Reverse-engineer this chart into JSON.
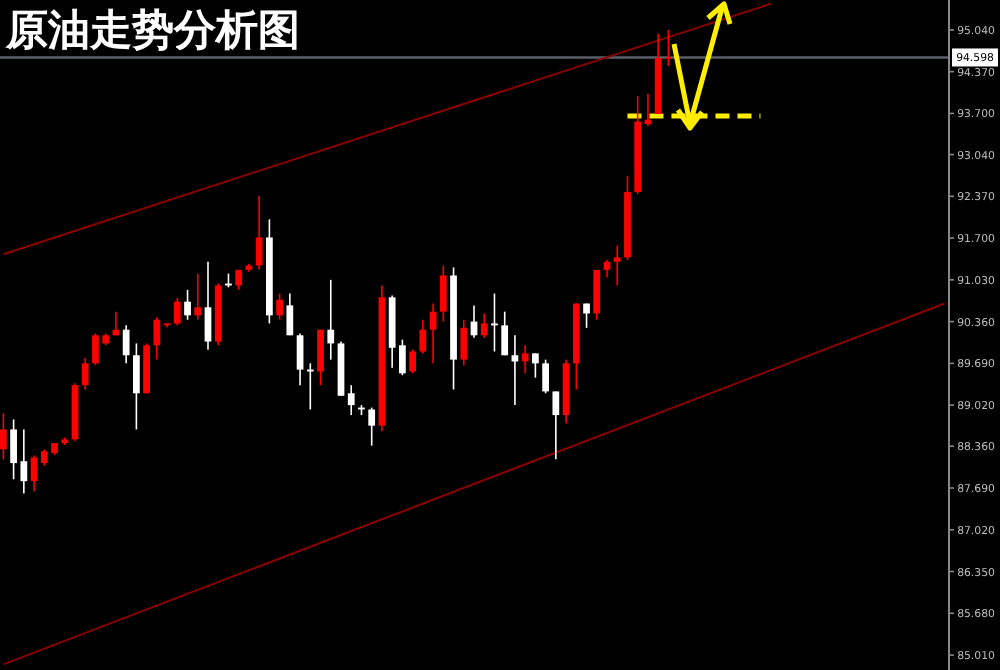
{
  "chart_data": {
    "type": "candlestick",
    "title": "原油走势分析图",
    "categories": [
      null,
      null,
      null,
      null,
      null,
      null,
      null,
      null,
      null,
      null,
      null,
      null,
      null,
      null,
      null,
      null,
      null,
      null,
      null,
      null,
      null,
      null,
      null,
      null,
      null,
      null,
      null,
      null,
      null,
      null,
      null,
      null,
      null,
      null,
      null,
      null,
      null,
      null,
      null,
      null,
      null,
      null,
      null,
      null,
      null,
      null,
      null,
      null,
      null,
      null,
      null,
      null,
      null,
      null,
      null,
      null,
      null,
      null,
      null,
      null,
      null,
      null,
      null,
      null,
      null,
      null,
      null,
      null,
      null,
      null,
      null,
      null,
      null,
      null,
      null,
      null,
      null,
      null,
      null,
      null,
      null,
      null,
      null,
      null,
      null,
      null,
      null,
      null,
      null,
      null,
      null,
      null,
      null
    ],
    "ohlc": [
      [
        88.31,
        88.89,
        88.15,
        88.63
      ],
      [
        88.63,
        88.79,
        87.83,
        88.09
      ],
      [
        88.12,
        88.63,
        87.6,
        87.8
      ],
      [
        87.8,
        88.21,
        87.64,
        88.18
      ],
      [
        88.09,
        88.31,
        88.05,
        88.28
      ],
      [
        88.25,
        88.41,
        88.22,
        88.41
      ],
      [
        88.41,
        88.5,
        88.38,
        88.47
      ],
      [
        88.47,
        89.37,
        88.44,
        89.34
      ],
      [
        89.34,
        89.78,
        89.27,
        89.69
      ],
      [
        89.69,
        90.17,
        89.66,
        90.14
      ],
      [
        90.01,
        90.17,
        89.98,
        90.14
      ],
      [
        90.14,
        90.52,
        90.14,
        90.23
      ],
      [
        90.23,
        90.3,
        89.69,
        89.82
      ],
      [
        89.82,
        90.01,
        88.63,
        89.21
      ],
      [
        89.21,
        90.01,
        89.21,
        89.98
      ],
      [
        89.98,
        90.43,
        89.75,
        90.39
      ],
      [
        90.3,
        90.33,
        90.27,
        90.33
      ],
      [
        90.33,
        90.74,
        90.3,
        90.68
      ],
      [
        90.68,
        90.87,
        90.39,
        90.46
      ],
      [
        90.46,
        91.13,
        90.39,
        90.59
      ],
      [
        90.59,
        91.32,
        89.91,
        90.04
      ],
      [
        90.04,
        90.97,
        89.98,
        90.94
      ],
      [
        90.97,
        91.13,
        90.91,
        90.94
      ],
      [
        90.94,
        91.19,
        90.87,
        91.19
      ],
      [
        91.19,
        91.29,
        91.16,
        91.26
      ],
      [
        91.26,
        92.38,
        91.19,
        91.71
      ],
      [
        91.71,
        92.0,
        90.33,
        90.46
      ],
      [
        90.46,
        90.81,
        90.39,
        90.71
      ],
      [
        90.62,
        90.81,
        90.14,
        90.14
      ],
      [
        90.14,
        90.17,
        89.34,
        89.59
      ],
      [
        89.59,
        89.69,
        88.95,
        89.56
      ],
      [
        89.56,
        90.23,
        89.34,
        90.23
      ],
      [
        90.23,
        91.03,
        89.75,
        90.01
      ],
      [
        90.01,
        90.04,
        89.17,
        89.17
      ],
      [
        89.21,
        89.34,
        88.86,
        89.02
      ],
      [
        88.98,
        89.02,
        88.86,
        88.95
      ],
      [
        88.95,
        88.98,
        88.37,
        88.69
      ],
      [
        88.69,
        90.94,
        88.6,
        90.75
      ],
      [
        90.75,
        90.78,
        89.62,
        89.94
      ],
      [
        89.98,
        90.07,
        89.5,
        89.53
      ],
      [
        89.56,
        89.91,
        89.53,
        89.88
      ],
      [
        89.88,
        90.39,
        89.85,
        90.23
      ],
      [
        90.23,
        90.65,
        89.69,
        90.52
      ],
      [
        90.52,
        91.26,
        90.36,
        91.1
      ],
      [
        91.1,
        91.23,
        89.27,
        89.75
      ],
      [
        89.75,
        90.39,
        89.66,
        90.26
      ],
      [
        90.36,
        90.62,
        90.1,
        90.14
      ],
      [
        90.14,
        90.49,
        90.1,
        90.33
      ],
      [
        90.33,
        90.81,
        89.88,
        90.3
      ],
      [
        90.3,
        90.52,
        89.82,
        89.82
      ],
      [
        89.82,
        90.14,
        89.02,
        89.72
      ],
      [
        89.72,
        89.98,
        89.53,
        89.85
      ],
      [
        89.85,
        89.85,
        89.46,
        89.69
      ],
      [
        89.69,
        89.75,
        89.21,
        89.24
      ],
      [
        89.24,
        89.24,
        88.15,
        88.86
      ],
      [
        88.86,
        89.75,
        88.73,
        89.69
      ],
      [
        89.69,
        90.65,
        89.27,
        90.65
      ],
      [
        90.65,
        90.65,
        90.26,
        90.49
      ],
      [
        90.49,
        91.19,
        90.39,
        91.19
      ],
      [
        91.19,
        91.35,
        91.07,
        91.32
      ],
      [
        91.32,
        91.58,
        90.94,
        91.39
      ],
      [
        91.39,
        92.7,
        91.35,
        92.44
      ],
      [
        92.44,
        93.98,
        92.41,
        93.57
      ],
      [
        93.53,
        94.01,
        93.5,
        93.6
      ],
      [
        93.69,
        94.98,
        93.69,
        94.59
      ],
      [
        94.59,
        95.04,
        94.46,
        94.6
      ],
      null,
      null,
      null,
      null,
      null,
      null,
      null,
      null,
      null,
      null,
      null,
      null,
      null,
      null,
      null,
      null,
      null,
      null,
      null,
      null,
      null,
      null,
      null,
      null,
      null,
      null,
      null
    ],
    "colors": [
      "#ff0000",
      "#ffffff",
      "#ffffff",
      "#ff0000",
      "#ff0000",
      "#ff0000",
      "#ff0000",
      "#ff0000",
      "#ff0000",
      "#ff0000",
      "#ff0000",
      "#ff0000",
      "#ffffff",
      "#ffffff",
      "#ff0000",
      "#ff0000",
      "#ff0000",
      "#ff0000",
      "#ffffff",
      "#ff0000",
      "#ffffff",
      "#ff0000",
      "#ffffff",
      "#ff0000",
      "#ff0000",
      "#ff0000",
      "#ffffff",
      "#ff0000",
      "#ffffff",
      "#ffffff",
      "#ffffff",
      "#ff0000",
      "#ffffff",
      "#ffffff",
      "#ffffff",
      "#ffffff",
      "#ffffff",
      "#ff0000",
      "#ffffff",
      "#ffffff",
      "#ff0000",
      "#ff0000",
      "#ff0000",
      "#ff0000",
      "#ffffff",
      "#ff0000",
      "#ffffff",
      "#ff0000",
      "#ffffff",
      "#ffffff",
      "#ffffff",
      "#ff0000",
      "#ffffff",
      "#ffffff",
      "#ffffff",
      "#ff0000",
      "#ff0000",
      "#ffffff",
      "#ff0000",
      "#ff0000",
      "#ff0000",
      "#ff0000",
      "#ff0000",
      "#ff0000",
      "#ff0000",
      "#ff0000",
      null,
      null,
      null,
      null,
      null,
      null,
      null,
      null,
      null,
      null,
      null,
      null,
      null,
      null,
      null,
      null,
      null,
      null,
      null,
      null,
      null,
      null,
      null,
      null,
      null,
      null,
      null
    ],
    "series": [
      {
        "type": "line",
        "color": "#8b0000",
        "values": [
          91.44,
          null,
          null,
          null,
          null,
          null,
          null,
          null,
          null,
          null,
          null,
          null,
          null,
          null,
          null,
          null,
          null,
          null,
          null,
          null,
          null,
          null,
          null,
          null,
          null,
          null,
          null,
          null,
          null,
          null,
          null,
          null,
          null,
          null,
          null,
          null,
          null,
          null,
          null,
          null,
          null,
          null,
          null,
          null,
          null,
          null,
          null,
          null,
          null,
          null,
          null,
          null,
          null,
          null,
          null,
          null,
          null,
          null,
          null,
          null,
          null,
          null,
          null,
          null,
          null,
          null,
          null,
          null,
          null,
          null,
          null,
          null,
          null,
          null,
          null,
          95.46,
          null,
          null,
          null,
          null,
          null,
          null,
          null,
          null,
          null,
          null,
          null,
          null,
          null,
          null,
          null,
          null,
          null
        ]
      },
      {
        "type": "line",
        "color": "#8b0000",
        "values": [
          84.86,
          null,
          null,
          null,
          null,
          null,
          null,
          null,
          null,
          null,
          null,
          null,
          null,
          null,
          null,
          null,
          null,
          null,
          null,
          null,
          null,
          null,
          null,
          null,
          null,
          null,
          null,
          null,
          null,
          null,
          null,
          null,
          null,
          null,
          null,
          null,
          null,
          null,
          null,
          null,
          null,
          null,
          null,
          null,
          null,
          null,
          null,
          null,
          null,
          null,
          null,
          null,
          null,
          null,
          null,
          null,
          null,
          null,
          null,
          null,
          null,
          null,
          null,
          null,
          null,
          null,
          null,
          null,
          null,
          null,
          null,
          null,
          null,
          null,
          null,
          null,
          null,
          null,
          null,
          null,
          null,
          null,
          null,
          null,
          null,
          null,
          null,
          null,
          null,
          null,
          null,
          null,
          90.65
        ]
      },
      {
        "type": "line",
        "color": "#ffee00",
        "line_style": "dashed",
        "values": [
          null,
          null,
          null,
          null,
          null,
          null,
          null,
          null,
          null,
          null,
          null,
          null,
          null,
          null,
          null,
          null,
          null,
          null,
          null,
          null,
          null,
          null,
          null,
          null,
          null,
          null,
          null,
          null,
          null,
          null,
          null,
          null,
          null,
          null,
          null,
          null,
          null,
          null,
          null,
          null,
          null,
          null,
          null,
          null,
          null,
          null,
          null,
          null,
          null,
          null,
          null,
          null,
          null,
          null,
          null,
          null,
          null,
          null,
          null,
          null,
          null,
          93.66,
          null,
          null,
          null,
          null,
          null,
          null,
          null,
          null,
          null,
          null,
          null,
          null,
          93.66,
          null,
          null,
          null,
          null,
          null,
          null,
          null,
          null,
          null,
          null,
          null,
          null,
          null,
          null,
          null,
          null,
          null,
          null
        ]
      }
    ],
    "ylim": [
      84.77,
      95.52
    ],
    "yticks": [
      {
        "value": 95.04,
        "label": "95.040"
      },
      {
        "value": 94.37,
        "label": "94.370"
      },
      {
        "value": 93.7,
        "label": "93.700"
      },
      {
        "value": 93.04,
        "label": "93.040"
      },
      {
        "value": 92.37,
        "label": "92.370"
      },
      {
        "value": 91.7,
        "label": "91.700"
      },
      {
        "value": 91.03,
        "label": "91.030"
      },
      {
        "value": 90.36,
        "label": "90.360"
      },
      {
        "value": 89.69,
        "label": "89.690"
      },
      {
        "value": 89.02,
        "label": "89.020"
      },
      {
        "value": 88.36,
        "label": "88.360"
      },
      {
        "value": 87.69,
        "label": "87.690"
      },
      {
        "value": 87.02,
        "label": "87.020"
      },
      {
        "value": 86.35,
        "label": "86.350"
      },
      {
        "value": 85.68,
        "label": "85.680"
      },
      {
        "value": 85.01,
        "label": "85.010"
      }
    ],
    "ref_lines": [
      {
        "axis": "y",
        "value": 94.598,
        "label": "94.598",
        "color": "#5a6068"
      }
    ],
    "tick_labels": "y"
  }
}
